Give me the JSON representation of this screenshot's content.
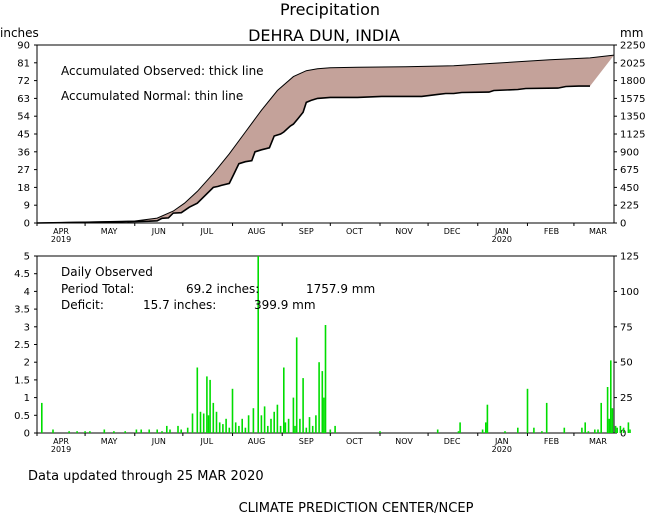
{
  "title": "Precipitation",
  "subtitle": "DEHRA DUN, INDIA",
  "units_left": "inches",
  "units_right": "mm",
  "footer_updated": "Data updated through 25 MAR 2020",
  "footer_center": "CLIMATE PREDICTION CENTER/NCEP",
  "colors": {
    "fill": "#c4a29a",
    "bars": "#00dd00",
    "axis": "#000000"
  },
  "chart_data": [
    {
      "type": "area",
      "legend": [
        "Accumulated Observed: thick line",
        "Accumulated Normal: thin line"
      ],
      "x_tick_labels": [
        "APR",
        "MAY",
        "JUN",
        "JUL",
        "AUG",
        "SEP",
        "OCT",
        "NOV",
        "DEC",
        "JAN",
        "FEB",
        "MAR"
      ],
      "x_year_labels": {
        "APR": "2019",
        "JAN": "2020"
      },
      "y_left_ticks": [
        0,
        9,
        18,
        27,
        36,
        45,
        54,
        63,
        72,
        81,
        90
      ],
      "y_right_ticks": [
        0,
        225,
        450,
        675,
        900,
        1125,
        1350,
        1575,
        1800,
        2025,
        2250
      ],
      "ylim_inches": [
        0,
        90
      ],
      "x_day_range": [
        0,
        360
      ],
      "series": [
        {
          "name": "Accumulated Observed",
          "points": [
            [
              0,
              0
            ],
            [
              20,
              0.2
            ],
            [
              45,
              0.5
            ],
            [
              70,
              0.9
            ],
            [
              75,
              1.1
            ],
            [
              78,
              2.4
            ],
            [
              82,
              2.6
            ],
            [
              85,
              5
            ],
            [
              90,
              5.2
            ],
            [
              95,
              8
            ],
            [
              100,
              10
            ],
            [
              105,
              14
            ],
            [
              110,
              18
            ],
            [
              113,
              18.5
            ],
            [
              115,
              19
            ],
            [
              120,
              20
            ],
            [
              123,
              25
            ],
            [
              126,
              30
            ],
            [
              130,
              31
            ],
            [
              134,
              31.5
            ],
            [
              136,
              36
            ],
            [
              140,
              37
            ],
            [
              145,
              38
            ],
            [
              148,
              44
            ],
            [
              152,
              45
            ],
            [
              154,
              46
            ],
            [
              158,
              49
            ],
            [
              160,
              50
            ],
            [
              163,
              53
            ],
            [
              166,
              56
            ],
            [
              168,
              61
            ],
            [
              171,
              62
            ],
            [
              175,
              63
            ],
            [
              183,
              63.5
            ],
            [
              200,
              63.5
            ],
            [
              215,
              64
            ],
            [
              240,
              64
            ],
            [
              250,
              65
            ],
            [
              255,
              65.5
            ],
            [
              260,
              65.5
            ],
            [
              265,
              66
            ],
            [
              282,
              66.2
            ],
            [
              285,
              67
            ],
            [
              300,
              67.5
            ],
            [
              305,
              68
            ],
            [
              325,
              68.2
            ],
            [
              330,
              69
            ],
            [
              338,
              69.2
            ],
            [
              345,
              69.2
            ]
          ]
        },
        {
          "name": "Accumulated Normal",
          "points": [
            [
              0,
              0
            ],
            [
              30,
              0.5
            ],
            [
              61,
              1.0
            ],
            [
              75,
              2.5
            ],
            [
              85,
              6
            ],
            [
              92,
              10
            ],
            [
              100,
              16
            ],
            [
              110,
              25
            ],
            [
              120,
              35
            ],
            [
              130,
              46
            ],
            [
              140,
              57
            ],
            [
              150,
              67
            ],
            [
              160,
              74
            ],
            [
              168,
              77
            ],
            [
              175,
              78
            ],
            [
              183,
              78.5
            ],
            [
              200,
              78.8
            ],
            [
              230,
              79
            ],
            [
              260,
              79.5
            ],
            [
              280,
              80.5
            ],
            [
              300,
              81.5
            ],
            [
              320,
              82.5
            ],
            [
              345,
              83.5
            ],
            [
              360,
              84.9
            ]
          ]
        }
      ]
    },
    {
      "type": "bar",
      "title": "Daily Observed",
      "stats": {
        "total_label": "Period Total:",
        "total_in": "69.2 inches:",
        "total_mm": "1757.9 mm",
        "deficit_label": "Deficit:",
        "deficit_in": "15.7 inches:",
        "deficit_mm": "399.9 mm"
      },
      "y_left_ticks": [
        "0",
        "0.5",
        "1",
        "1.5",
        "2",
        "2.5",
        "3",
        "3.5",
        "4",
        "4.5",
        "5"
      ],
      "y_right_ticks": [
        0,
        25,
        50,
        75,
        100,
        125
      ],
      "ylim_inches": [
        0,
        5
      ],
      "series": [
        {
          "name": "Daily Observed",
          "points": [
            [
              3,
              0.85
            ],
            [
              10,
              0.1
            ],
            [
              20,
              0.05
            ],
            [
              25,
              0.05
            ],
            [
              30,
              0.05
            ],
            [
              33,
              0.05
            ],
            [
              42,
              0.1
            ],
            [
              48,
              0.05
            ],
            [
              55,
              0.05
            ],
            [
              62,
              0.1
            ],
            [
              65,
              0.1
            ],
            [
              70,
              0.1
            ],
            [
              75,
              0.1
            ],
            [
              78,
              0.05
            ],
            [
              81,
              0.2
            ],
            [
              83,
              0.1
            ],
            [
              88,
              0.2
            ],
            [
              90,
              0.1
            ],
            [
              94,
              0.15
            ],
            [
              97,
              0.55
            ],
            [
              100,
              1.85
            ],
            [
              102,
              0.6
            ],
            [
              104,
              0.55
            ],
            [
              106,
              1.6
            ],
            [
              107,
              0.5
            ],
            [
              108,
              1.5
            ],
            [
              110,
              0.85
            ],
            [
              112,
              0.6
            ],
            [
              114,
              0.3
            ],
            [
              116,
              0.25
            ],
            [
              118,
              0.4
            ],
            [
              120,
              0.15
            ],
            [
              122,
              1.25
            ],
            [
              124,
              0.3
            ],
            [
              126,
              0.2
            ],
            [
              128,
              0.4
            ],
            [
              130,
              0.15
            ],
            [
              132,
              0.5
            ],
            [
              135,
              0.7
            ],
            [
              138,
              5.0
            ],
            [
              140,
              0.5
            ],
            [
              142,
              0.75
            ],
            [
              144,
              0.2
            ],
            [
              146,
              0.4
            ],
            [
              148,
              0.6
            ],
            [
              150,
              0.8
            ],
            [
              152,
              0.2
            ],
            [
              154,
              1.85
            ],
            [
              155,
              0.3
            ],
            [
              157,
              0.4
            ],
            [
              160,
              1.0
            ],
            [
              161,
              0.2
            ],
            [
              162,
              2.7
            ],
            [
              164,
              0.4
            ],
            [
              166,
              1.55
            ],
            [
              168,
              0.15
            ],
            [
              170,
              0.45
            ],
            [
              172,
              0.2
            ],
            [
              174,
              0.5
            ],
            [
              176,
              2.0
            ],
            [
              178,
              1.75
            ],
            [
              179,
              1.0
            ],
            [
              180,
              3.05
            ],
            [
              183,
              0.1
            ],
            [
              186,
              0.2
            ],
            [
              214,
              0.05
            ],
            [
              250,
              0.1
            ],
            [
              263,
              0.05
            ],
            [
              264,
              0.3
            ],
            [
              278,
              0.1
            ],
            [
              280,
              0.3
            ],
            [
              281,
              0.8
            ],
            [
              292,
              0.05
            ],
            [
              300,
              0.15
            ],
            [
              306,
              1.25
            ],
            [
              310,
              0.15
            ],
            [
              315,
              0.05
            ],
            [
              318,
              0.85
            ],
            [
              329,
              0.15
            ],
            [
              340,
              0.15
            ],
            [
              342,
              0.3
            ],
            [
              344,
              0.05
            ],
            [
              348,
              0.1
            ],
            [
              350,
              0.1
            ],
            [
              352,
              0.85
            ],
            [
              356,
              1.3
            ],
            [
              357,
              0.4
            ],
            [
              358,
              2.05
            ],
            [
              359,
              0.7
            ],
            [
              361,
              0.2
            ],
            [
              362,
              0.15
            ],
            [
              364,
              0.2
            ],
            [
              366,
              0.15
            ],
            [
              369,
              0.3
            ],
            [
              370,
              0.1
            ]
          ]
        }
      ]
    }
  ]
}
